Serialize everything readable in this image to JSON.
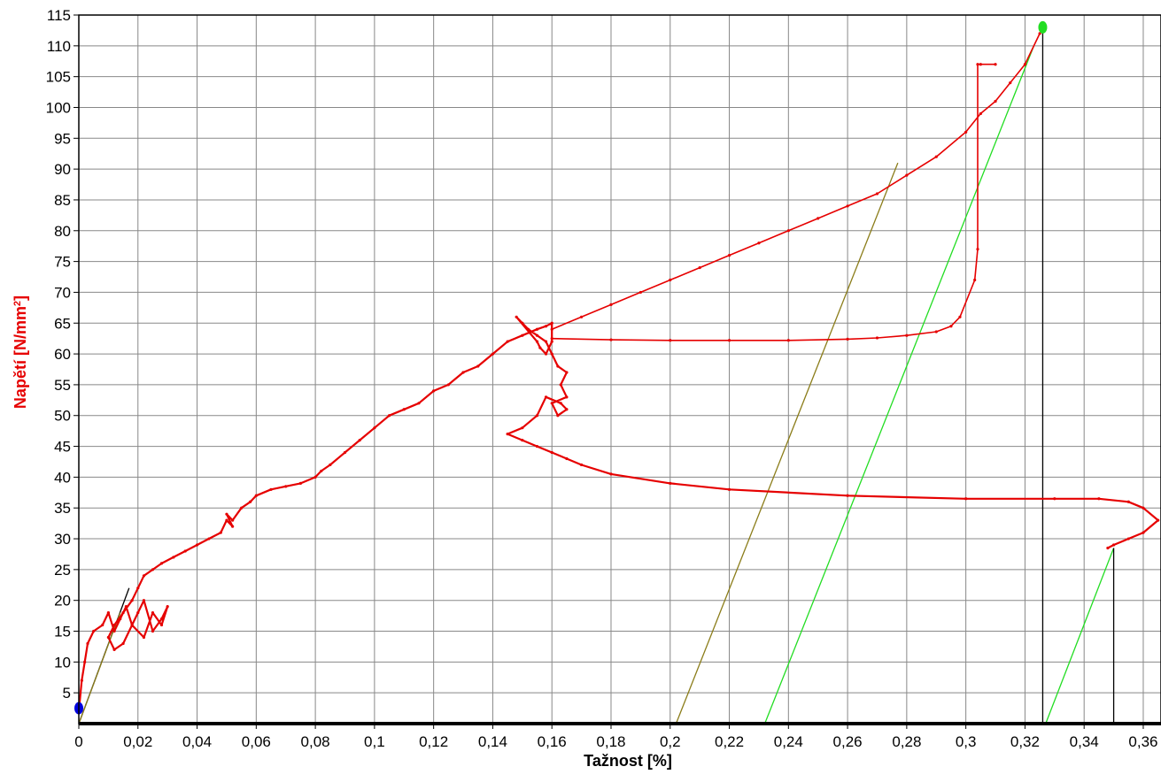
{
  "chart_data": {
    "type": "line",
    "xlabel": "Tažnost [%]",
    "ylabel": "Napětí [N/mm",
    "ylabel_sup": "2",
    "ylabel_close": "]",
    "xlim": [
      0,
      0.366
    ],
    "ylim": [
      0,
      115
    ],
    "x_ticks": [
      0,
      0.02,
      0.04,
      0.06,
      0.08,
      0.1,
      0.12,
      0.14,
      0.16,
      0.18,
      0.2,
      0.22,
      0.24,
      0.26,
      0.28,
      0.3,
      0.32,
      0.34,
      0.36
    ],
    "x_tick_labels": [
      "0",
      "0,02",
      "0,04",
      "0,06",
      "0,08",
      "0,1",
      "0,12",
      "0,14",
      "0,16",
      "0,18",
      "0,2",
      "0,22",
      "0,24",
      "0,26",
      "0,28",
      "0,3",
      "0,32",
      "0,34",
      "0,36"
    ],
    "y_ticks": [
      5,
      10,
      15,
      20,
      25,
      30,
      35,
      40,
      45,
      50,
      55,
      60,
      65,
      70,
      75,
      80,
      85,
      90,
      95,
      100,
      105,
      110,
      115
    ],
    "y_tick_labels": [
      "5",
      "10",
      "15",
      "20",
      "25",
      "30",
      "35",
      "40",
      "45",
      "50",
      "55",
      "60",
      "65",
      "70",
      "75",
      "80",
      "85",
      "90",
      "95",
      "100",
      "105",
      "110",
      "115"
    ],
    "grid": true,
    "colors": {
      "main": "#e60000",
      "olive": "#8b7d1a",
      "green": "#22dd22",
      "black": "#000000",
      "blue": "#0000dd"
    },
    "series": [
      {
        "color": "#e60000",
        "x": [
          0,
          0.001,
          0.002,
          0.003,
          0.005,
          0.008,
          0.01,
          0.012,
          0.014,
          0.016,
          0.018,
          0.02,
          0.022,
          0.025,
          0.028,
          0.03,
          0.028,
          0.025,
          0.022,
          0.018,
          0.015,
          0.012,
          0.01,
          0.012,
          0.015,
          0.018,
          0.02,
          0.022,
          0.025,
          0.028,
          0.032,
          0.036,
          0.04,
          0.044,
          0.048,
          0.05,
          0.052,
          0.05,
          0.052,
          0.055,
          0.058,
          0.06,
          0.065,
          0.07,
          0.075,
          0.08,
          0.082,
          0.085,
          0.09,
          0.095,
          0.1,
          0.105,
          0.11,
          0.115,
          0.12,
          0.125,
          0.13,
          0.135,
          0.14,
          0.145,
          0.15,
          0.155,
          0.158,
          0.16,
          0.16,
          0.158,
          0.156,
          0.155,
          0.148,
          0.15,
          0.152,
          0.155,
          0.158,
          0.16,
          0.162,
          0.165,
          0.163,
          0.165,
          0.16,
          0.162,
          0.165,
          0.163,
          0.158,
          0.155,
          0.15,
          0.145,
          0.15,
          0.155,
          0.16,
          0.165,
          0.17,
          0.18,
          0.2,
          0.22,
          0.26,
          0.3,
          0.33,
          0.345,
          0.355,
          0.36,
          0.365,
          0.36,
          0.355,
          0.35,
          0.348
        ],
        "y": [
          2,
          7,
          10,
          13,
          15,
          16,
          18,
          15,
          17,
          19,
          16,
          18,
          20,
          15,
          17,
          19,
          16,
          18,
          14,
          16,
          13,
          12,
          14,
          16,
          18,
          20,
          22,
          24,
          25,
          26,
          27,
          28,
          29,
          30,
          31,
          33,
          32,
          34,
          33,
          35,
          36,
          37,
          38,
          38.5,
          39,
          40,
          41,
          42,
          44,
          46,
          48,
          50,
          51,
          52,
          54,
          55,
          57,
          58,
          60,
          62,
          63,
          64,
          64.5,
          65,
          62,
          60,
          61,
          62,
          66,
          65,
          64,
          63,
          62,
          60,
          58,
          57,
          55,
          53,
          52,
          50,
          51,
          52,
          53,
          50,
          48,
          47,
          46,
          45,
          44,
          43,
          42,
          40.5,
          39,
          38,
          37,
          36.5,
          36.5,
          36.5,
          36,
          35,
          33,
          31,
          30,
          29,
          28.5
        ]
      },
      {
        "color": "#e60000",
        "x": [
          0.16,
          0.17,
          0.18,
          0.19,
          0.2,
          0.21,
          0.22,
          0.23,
          0.24,
          0.25,
          0.26,
          0.27,
          0.28,
          0.29,
          0.3,
          0.305,
          0.31,
          0.315,
          0.32,
          0.325
        ],
        "y": [
          64,
          66,
          68,
          70,
          72,
          74,
          76,
          78,
          80,
          82,
          84,
          86,
          89,
          92,
          96,
          99,
          101,
          104,
          107,
          112
        ]
      },
      {
        "color": "#e60000",
        "x": [
          0.16,
          0.18,
          0.2,
          0.22,
          0.24,
          0.26,
          0.27,
          0.28,
          0.29,
          0.295,
          0.298,
          0.303,
          0.304,
          0.304,
          0.305,
          0.31
        ],
        "y": [
          62.5,
          62.3,
          62.2,
          62.2,
          62.2,
          62.4,
          62.6,
          63,
          63.6,
          64.5,
          66,
          72,
          77,
          107,
          107,
          107
        ]
      }
    ],
    "reference_lines": [
      {
        "color": "#000000",
        "x": [
          0,
          0.017
        ],
        "y": [
          0,
          22
        ]
      },
      {
        "color": "#8b7d1a",
        "x": [
          0,
          0.014
        ],
        "y": [
          0,
          18
        ]
      },
      {
        "color": "#8b7d1a",
        "x": [
          0.202,
          0.277
        ],
        "y": [
          0,
          91
        ]
      },
      {
        "color": "#22dd22",
        "x": [
          0.232,
          0.323
        ],
        "y": [
          0,
          110
        ]
      },
      {
        "color": "#22dd22",
        "x": [
          0.327,
          0.35
        ],
        "y": [
          0,
          28.5
        ]
      },
      {
        "color": "#000000",
        "x": [
          0.326,
          0.326
        ],
        "y": [
          0,
          113
        ]
      },
      {
        "color": "#000000",
        "x": [
          0.35,
          0.35
        ],
        "y": [
          0,
          28.5
        ]
      }
    ],
    "markers": [
      {
        "color": "#0000dd",
        "x": 0,
        "y": 2.5
      },
      {
        "color": "#22dd22",
        "x": 0.326,
        "y": 113
      }
    ]
  }
}
